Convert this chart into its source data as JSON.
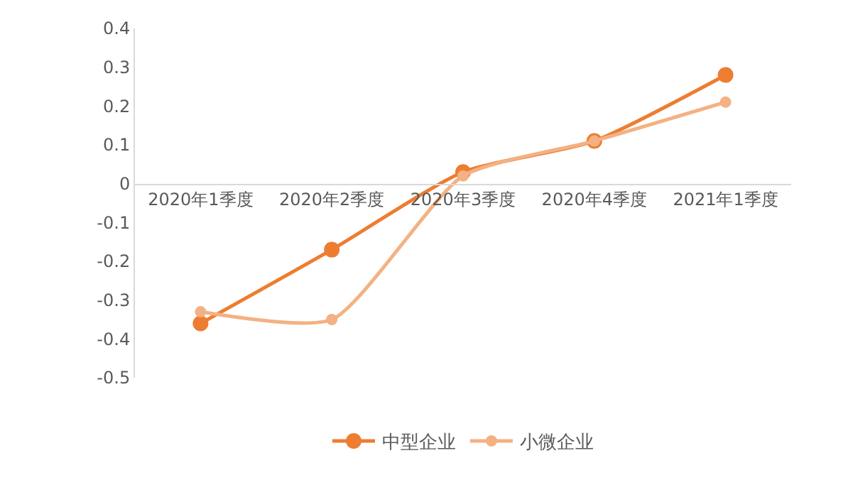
{
  "chart_data": {
    "type": "line",
    "categories": [
      "2020年1季度",
      "2020年2季度",
      "2020年3季度",
      "2020年4季度",
      "2021年1季度"
    ],
    "series": [
      {
        "name": "中型企业",
        "color": "#ed7d31",
        "values": [
          -0.36,
          -0.17,
          0.03,
          0.11,
          0.28
        ]
      },
      {
        "name": "小微企业",
        "color": "#f4b183",
        "values": [
          -0.33,
          -0.35,
          0.02,
          0.11,
          0.21
        ]
      }
    ],
    "ylim": [
      -0.5,
      0.4
    ],
    "yticks": [
      -0.5,
      -0.4,
      -0.3,
      -0.2,
      -0.1,
      0,
      0.1,
      0.2,
      0.3,
      0.4
    ],
    "grid": false,
    "legend": "bottom",
    "marker": "circle",
    "line_style": "solid"
  }
}
